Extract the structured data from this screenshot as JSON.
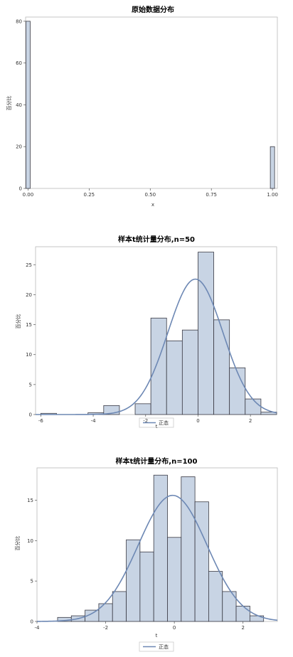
{
  "chart_data": [
    {
      "type": "bar",
      "title": "原始数据分布",
      "xlabel": "x",
      "ylabel": "百分比",
      "xlim": [
        -0.01,
        1.02
      ],
      "ylim": [
        0,
        82
      ],
      "x_ticks": [
        "0.00",
        "0.25",
        "0.50",
        "0.75",
        "1.00"
      ],
      "y_ticks": [
        "0",
        "20",
        "40",
        "60",
        "80"
      ],
      "bars": [
        {
          "x": 0.0,
          "value": 80
        },
        {
          "x": 1.0,
          "value": 20
        }
      ],
      "colors": {
        "bar_fill": "#c8d4e4",
        "bar_stroke": "#3a3a44"
      }
    },
    {
      "type": "bar",
      "title": "样本t统计量分布,n=50",
      "xlabel": "t",
      "ylabel": "百分比",
      "xlim": [
        -6.2,
        3.0
      ],
      "ylim": [
        0,
        28
      ],
      "x_ticks": [
        "-6",
        "-4",
        "-2",
        "0",
        "2"
      ],
      "y_ticks": [
        "0",
        "5",
        "10",
        "15",
        "20",
        "25"
      ],
      "bin_width": 0.6,
      "bins": [
        {
          "x": -5.7,
          "value": 0.2
        },
        {
          "x": -3.9,
          "value": 0.3
        },
        {
          "x": -3.3,
          "value": 1.5
        },
        {
          "x": -2.1,
          "value": 1.8
        },
        {
          "x": -1.5,
          "value": 16.1
        },
        {
          "x": -0.9,
          "value": 12.3
        },
        {
          "x": -0.3,
          "value": 14.1
        },
        {
          "x": 0.3,
          "value": 27.1
        },
        {
          "x": 0.9,
          "value": 15.8
        },
        {
          "x": 1.5,
          "value": 7.8
        },
        {
          "x": 2.1,
          "value": 2.6
        },
        {
          "x": 2.7,
          "value": 0.4
        }
      ],
      "normal_curve": {
        "mean": -0.1,
        "sd": 1.05,
        "peak": 22.6
      },
      "legend": [
        "正态"
      ],
      "colors": {
        "bar_fill": "#c8d4e4",
        "bar_stroke": "#3a3a44",
        "curve": "#6d88b4"
      }
    },
    {
      "type": "bar",
      "title": "样本t统计量分布,n=100",
      "xlabel": "t",
      "ylabel": "百分比",
      "xlim": [
        -4.0,
        3.0
      ],
      "ylim": [
        0,
        19
      ],
      "x_ticks": [
        "-4",
        "-2",
        "0",
        "2"
      ],
      "y_ticks": [
        "0",
        "5",
        "10",
        "15"
      ],
      "bin_width": 0.4,
      "bins": [
        {
          "x": -3.2,
          "value": 0.5
        },
        {
          "x": -2.8,
          "value": 0.7
        },
        {
          "x": -2.4,
          "value": 1.4
        },
        {
          "x": -2.0,
          "value": 2.2
        },
        {
          "x": -1.6,
          "value": 3.7
        },
        {
          "x": -1.2,
          "value": 10.1
        },
        {
          "x": -0.8,
          "value": 8.6
        },
        {
          "x": -0.4,
          "value": 18.1
        },
        {
          "x": 0.0,
          "value": 10.4
        },
        {
          "x": 0.4,
          "value": 17.9
        },
        {
          "x": 0.8,
          "value": 14.8
        },
        {
          "x": 1.2,
          "value": 6.2
        },
        {
          "x": 1.6,
          "value": 3.7
        },
        {
          "x": 2.0,
          "value": 1.9
        },
        {
          "x": 2.4,
          "value": 0.7
        }
      ],
      "normal_curve": {
        "mean": -0.05,
        "sd": 1.0,
        "peak": 15.6
      },
      "legend": [
        "正态"
      ],
      "colors": {
        "bar_fill": "#c8d4e4",
        "bar_stroke": "#3a3a44",
        "curve": "#6d88b4"
      }
    }
  ]
}
